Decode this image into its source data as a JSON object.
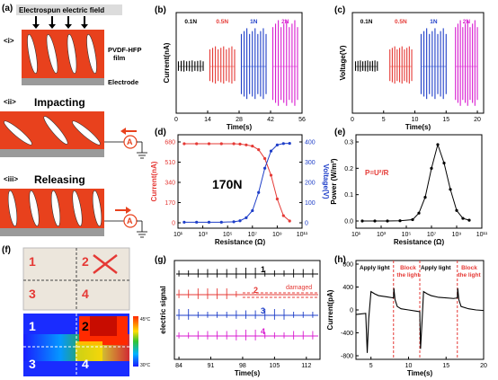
{
  "panels": {
    "a": {
      "label": "(a)",
      "title": "Electrospun electric field",
      "steps": [
        "<i>",
        "<ii>",
        "<iii>"
      ],
      "film": "PVDF-HFP\nfilm",
      "electrode": "Electrode",
      "impacting": "Impacting",
      "releasing": "Releasing",
      "ammeter": "A",
      "colors": {
        "film": "#e8411d",
        "electrode": "#9a9a9a",
        "arrow": "#e8411d"
      }
    },
    "f": {
      "label": "(f)",
      "quadrants": [
        "1",
        "2",
        "3",
        "4"
      ],
      "scale_max": "45°C",
      "scale_min": "30°C"
    }
  },
  "chart_data": [
    {
      "id": "b",
      "label": "(b)",
      "type": "line",
      "xlabel": "Time(s)",
      "ylabel": "Current(nA)",
      "xticks": [
        0,
        14,
        28,
        42,
        56
      ],
      "xlim": [
        0,
        56
      ],
      "groups": [
        {
          "name": "0.1N",
          "x_range": [
            1,
            12
          ],
          "amplitude": 0.06,
          "color": "#000000"
        },
        {
          "name": "0.5N",
          "x_range": [
            15,
            26
          ],
          "amplitude": 0.2,
          "color": "#e53935"
        },
        {
          "name": "1N",
          "x_range": [
            29,
            40
          ],
          "amplitude": 0.38,
          "color": "#1e3ec8"
        },
        {
          "name": "2N",
          "x_range": [
            43,
            54
          ],
          "amplitude": 0.46,
          "color": "#d81bd0"
        }
      ]
    },
    {
      "id": "c",
      "label": "(c)",
      "type": "line",
      "xlabel": "Time(s)",
      "ylabel": "Voltage(V)",
      "xticks": [
        0,
        5,
        10,
        15,
        20
      ],
      "xlim": [
        0,
        21
      ],
      "groups": [
        {
          "name": "0.1N",
          "x_range": [
            0.5,
            4
          ],
          "amplitude": 0.06,
          "color": "#000000"
        },
        {
          "name": "0.5N",
          "x_range": [
            6,
            9.5
          ],
          "amplitude": 0.2,
          "color": "#e53935"
        },
        {
          "name": "1N",
          "x_range": [
            11,
            15
          ],
          "amplitude": 0.38,
          "color": "#1e3ec8"
        },
        {
          "name": "2N",
          "x_range": [
            16.5,
            20
          ],
          "amplitude": 0.46,
          "color": "#d81bd0"
        }
      ]
    },
    {
      "id": "d",
      "label": "(d)",
      "type": "line",
      "xscale": "log",
      "xlabel": "Resistance (Ω)",
      "ylabel": "Current(nA)",
      "y2label": "Voltage(V)",
      "annotation": "170N",
      "xticks": [
        "10¹",
        "10³",
        "10⁵",
        "10⁷",
        "10⁹",
        "10¹¹"
      ],
      "xlim_exp": [
        1,
        11
      ],
      "ylim": [
        0,
        680
      ],
      "yticks": [
        0,
        170,
        340,
        510,
        680
      ],
      "y2lim": [
        0,
        400
      ],
      "y2ticks": [
        0,
        100,
        200,
        300,
        400
      ],
      "series": [
        {
          "name": "Current(nA)",
          "axis": "left",
          "color": "#e53935",
          "x_exp": [
            1.5,
            2.5,
            3.5,
            4.5,
            5.5,
            6,
            6.5,
            7,
            7.5,
            8,
            8.5,
            9,
            9.5,
            10
          ],
          "values": [
            665,
            665,
            665,
            665,
            665,
            662,
            655,
            645,
            615,
            540,
            400,
            200,
            60,
            15
          ]
        },
        {
          "name": "Voltage(V)",
          "axis": "right",
          "color": "#1e3ec8",
          "x_exp": [
            1.5,
            2.5,
            3.5,
            4.5,
            5.5,
            6,
            6.5,
            7,
            7.5,
            8,
            8.5,
            9,
            9.5,
            10
          ],
          "values": [
            3,
            3,
            3,
            3,
            5,
            10,
            25,
            60,
            150,
            270,
            355,
            385,
            392,
            393
          ]
        }
      ]
    },
    {
      "id": "e",
      "label": "(e)",
      "type": "line",
      "xscale": "log",
      "xlabel": "Resistance (Ω)",
      "ylabel": "Power (W/m²)",
      "annotation": "P=U²/R",
      "xticks": [
        "10¹",
        "10³",
        "10⁵",
        "10⁷",
        "10⁹",
        "10¹¹"
      ],
      "xlim_exp": [
        1,
        11
      ],
      "ylim": [
        0,
        0.3
      ],
      "yticks": [
        "0.0",
        "0.1",
        "0.2",
        "0.3"
      ],
      "series": [
        {
          "name": "Power",
          "color": "#000000",
          "x_exp": [
            1.5,
            2.5,
            3.5,
            4.5,
            5.5,
            6,
            6.5,
            7,
            7.5,
            8,
            8.5,
            9,
            9.5,
            10
          ],
          "values": [
            0,
            0,
            0,
            0.001,
            0.005,
            0.03,
            0.09,
            0.2,
            0.29,
            0.22,
            0.12,
            0.04,
            0.01,
            0.003
          ]
        }
      ]
    },
    {
      "id": "g",
      "label": "(g)",
      "type": "line",
      "xlabel": "Time(s)",
      "ylabel": "electric signal",
      "xticks": [
        84,
        91,
        98,
        105,
        112
      ],
      "xlim": [
        83,
        115
      ],
      "annotation": "damaged",
      "damaged_range": [
        98,
        115
      ],
      "series": [
        {
          "name": "1",
          "color": "#000000"
        },
        {
          "name": "2",
          "color": "#e53935"
        },
        {
          "name": "3",
          "color": "#1e3ec8"
        },
        {
          "name": "4",
          "color": "#d81bd0"
        }
      ]
    },
    {
      "id": "h",
      "label": "(h)",
      "type": "line",
      "xlabel": "Time(s)",
      "ylabel": "Current(pA)",
      "xlim": [
        3,
        20
      ],
      "xticks": [
        5,
        10,
        15,
        20
      ],
      "ylim": [
        -800,
        800
      ],
      "yticks": [
        -800,
        -400,
        0,
        400,
        800
      ],
      "annotations": [
        "Apply light",
        "Block the light",
        "Apply light",
        "Block the light"
      ],
      "vlines": [
        8,
        11.5,
        16.5
      ],
      "series": [
        {
          "name": "Current",
          "color": "#000000",
          "x": [
            3,
            4.3,
            4.5,
            4.7,
            5,
            5.5,
            6,
            7,
            8,
            8.05,
            8.2,
            8.5,
            9,
            10,
            11,
            11.5,
            11.6,
            11.8,
            12,
            12.5,
            13,
            14,
            16,
            16.5,
            16.55,
            16.7,
            17,
            18,
            19,
            20
          ],
          "values": [
            -80,
            -60,
            -750,
            -150,
            320,
            280,
            250,
            230,
            210,
            380,
            180,
            60,
            20,
            0,
            -20,
            -30,
            -680,
            -200,
            320,
            280,
            250,
            220,
            200,
            210,
            380,
            180,
            60,
            20,
            0,
            -10
          ]
        }
      ]
    }
  ]
}
